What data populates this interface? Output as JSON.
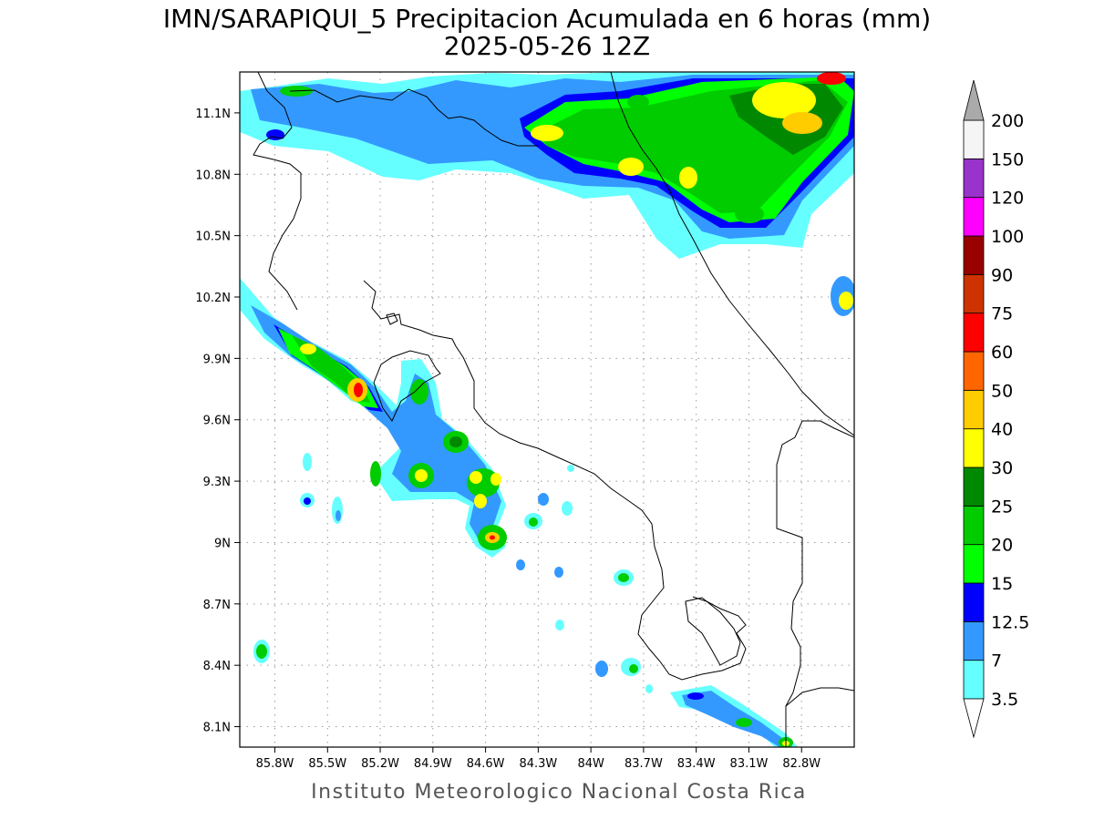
{
  "header": {
    "title": "IMN/SARAPIQUI_5 Precipitacion Acumulada en 6 horas (mm)",
    "subtitle": "2025-05-26 12Z"
  },
  "footer": {
    "credit": "Instituto Meteorologico Nacional Costa Rica"
  },
  "map": {
    "lon_range": [
      -86.0,
      -82.5
    ],
    "lat_range": [
      8.0,
      11.3
    ],
    "x_ticks": [
      "85.8W",
      "85.5W",
      "85.2W",
      "84.9W",
      "84.6W",
      "84.3W",
      "84W",
      "83.7W",
      "83.4W",
      "83.1W",
      "82.8W"
    ],
    "y_ticks": [
      "8.1N",
      "8.4N",
      "8.7N",
      "9N",
      "9.3N",
      "9.6N",
      "9.9N",
      "10.2N",
      "10.5N",
      "10.8N",
      "11.1N"
    ],
    "grid": true
  },
  "colorbar": {
    "labels": [
      "3.5",
      "7",
      "12.5",
      "15",
      "20",
      "25",
      "30",
      "40",
      "50",
      "60",
      "75",
      "90",
      "100",
      "120",
      "150",
      "200"
    ],
    "colors": [
      "#66ffff",
      "#3399ff",
      "#0000ff",
      "#00ff00",
      "#00cc00",
      "#008800",
      "#ffff00",
      "#ffcc00",
      "#ff6600",
      "#ff0000",
      "#cc3300",
      "#990000",
      "#ff00ff",
      "#9933cc",
      "#f5f5f5",
      "#aaaaaa"
    ]
  }
}
